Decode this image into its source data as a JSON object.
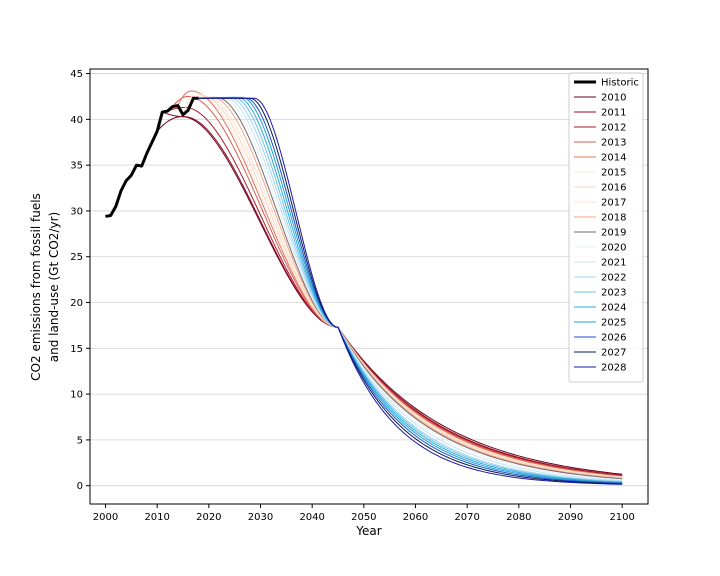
{
  "chart_data": {
    "type": "line",
    "xlabel": "Year",
    "ylabel_line1": "CO2 emissions from fossil fuels",
    "ylabel_line2": "and land-use (Gt CO2/yr)",
    "xlim": [
      1997,
      2105
    ],
    "ylim": [
      -2,
      45.5
    ],
    "x_ticks": [
      2000,
      2010,
      2020,
      2030,
      2040,
      2050,
      2060,
      2070,
      2080,
      2090,
      2100
    ],
    "y_ticks": [
      0,
      5,
      10,
      15,
      20,
      25,
      30,
      35,
      40,
      45
    ],
    "grid": "horizontal",
    "legend_position": "top-right",
    "historic": {
      "name": "Historic",
      "color": "#000000",
      "x": [
        2000,
        2001,
        2002,
        2003,
        2004,
        2005,
        2006,
        2007,
        2008,
        2009,
        2010,
        2011,
        2012,
        2013,
        2014,
        2015,
        2016,
        2017,
        2018
      ],
      "y": [
        29.4,
        29.5,
        30.5,
        32.2,
        33.3,
        33.9,
        35.0,
        34.9,
        36.3,
        37.5,
        38.7,
        40.8,
        40.9,
        41.4,
        41.5,
        40.5,
        41.0,
        42.3,
        42.3
      ]
    },
    "scenario_common": {
      "end_year": 2100,
      "crossover_year": 2045,
      "crossover_value": 17.3
    },
    "series": [
      {
        "name": "2010",
        "color": "#67001f",
        "peak_year": 2014.8,
        "peak_value": 40.3,
        "end_value": 1.25
      },
      {
        "name": "2011",
        "color": "#8f0e24",
        "peak_year": 2015.2,
        "peak_value": 40.3,
        "end_value": 1.15
      },
      {
        "name": "2012",
        "color": "#b2182b",
        "peak_year": 2015.4,
        "peak_value": 41.3,
        "end_value": 1.1
      },
      {
        "name": "2013",
        "color": "#d6604d",
        "peak_year": 2016.0,
        "peak_value": 42.5,
        "end_value": 1.05
      },
      {
        "name": "2014",
        "color": "#e2735e",
        "peak_year": 2016.6,
        "peak_value": 43.1,
        "end_value": 1.0
      },
      {
        "name": "2015",
        "color": "#fde8d8",
        "peak_year": 2017.6,
        "peak_value": 42.8,
        "end_value": 0.95
      },
      {
        "name": "2016",
        "color": "#fbd5c0",
        "peak_year": 2018.6,
        "peak_value": 42.6,
        "end_value": 0.9
      },
      {
        "name": "2017",
        "color": "#fce2d3",
        "peak_year": 2019.6,
        "peak_value": 42.4,
        "end_value": 0.85
      },
      {
        "name": "2018",
        "color": "#f4a582",
        "peak_year": 2020.6,
        "peak_value": 42.4,
        "end_value": 0.8
      },
      {
        "name": "2019",
        "color": "#6e6e6e",
        "peak_year": 2021.5,
        "peak_value": 42.4,
        "end_value": 0.75
      },
      {
        "name": "2020",
        "color": "#e6f0f7",
        "peak_year": 2022.4,
        "peak_value": 42.4,
        "end_value": 0.65
      },
      {
        "name": "2021",
        "color": "#c7e3f3",
        "peak_year": 2023.2,
        "peak_value": 42.4,
        "end_value": 0.55
      },
      {
        "name": "2022",
        "color": "#a1d5ee",
        "peak_year": 2024.0,
        "peak_value": 42.4,
        "end_value": 0.45
      },
      {
        "name": "2023",
        "color": "#6cc3e8",
        "peak_year": 2024.8,
        "peak_value": 42.4,
        "end_value": 0.4
      },
      {
        "name": "2024",
        "color": "#2fa9e0",
        "peak_year": 2025.6,
        "peak_value": 42.4,
        "end_value": 0.35
      },
      {
        "name": "2025",
        "color": "#1aa3c9",
        "peak_year": 2026.4,
        "peak_value": 42.4,
        "end_value": 0.3
      },
      {
        "name": "2026",
        "color": "#1f4fd6",
        "peak_year": 2027.2,
        "peak_value": 42.3,
        "end_value": 0.25
      },
      {
        "name": "2027",
        "color": "#0a1a4a",
        "peak_year": 2028.0,
        "peak_value": 42.3,
        "end_value": 0.2
      },
      {
        "name": "2028",
        "color": "#1a1aa8",
        "peak_year": 2028.8,
        "peak_value": 42.3,
        "end_value": 0.15
      }
    ]
  }
}
